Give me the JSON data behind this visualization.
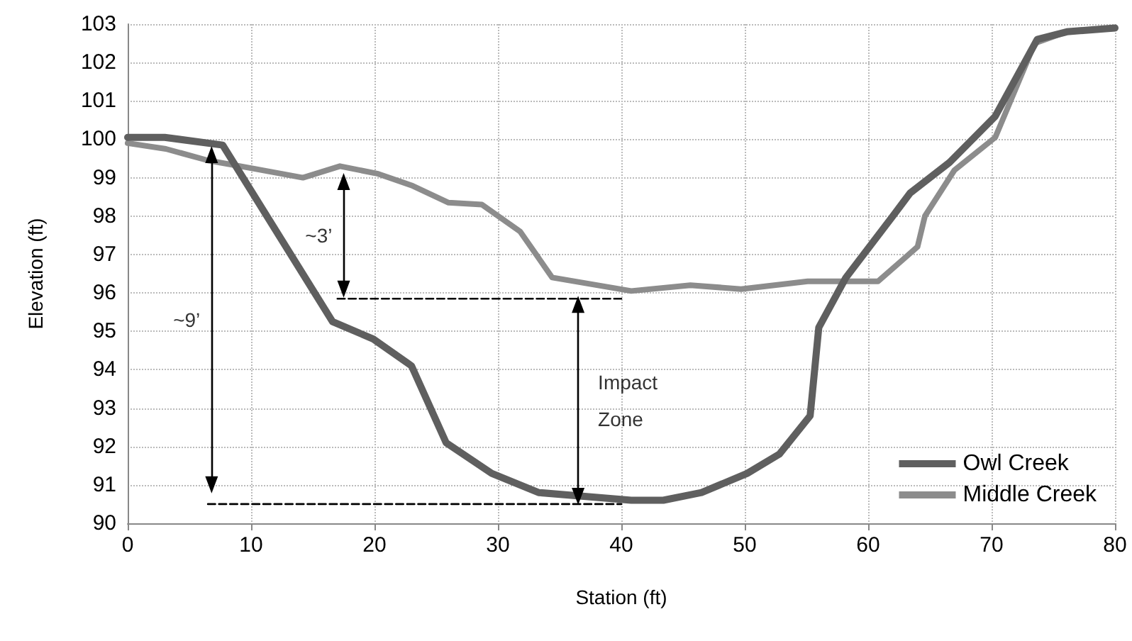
{
  "chart_data": {
    "type": "line",
    "xlabel": "Station (ft)",
    "ylabel": "Elevation (ft)",
    "xlim": [
      0,
      80
    ],
    "xticks": [
      0,
      10,
      20,
      30,
      40,
      50,
      60,
      70,
      80
    ],
    "ylim": [
      90,
      103
    ],
    "yticks": [
      90,
      91,
      92,
      93,
      94,
      95,
      96,
      97,
      98,
      99,
      100,
      101,
      102,
      103
    ],
    "grid": true,
    "legend": "bottom right",
    "line_style": "solid",
    "marker": "none",
    "series": [
      {
        "name": "Owl Creek",
        "color": "#5f5f5f",
        "x": [
          0,
          3,
          7.7,
          16.6,
          19.9,
          23,
          25.8,
          29.5,
          33.3,
          40.8,
          43.4,
          46.5,
          50.2,
          52.8,
          55.3,
          56,
          58.2,
          62,
          63.4,
          66.6,
          70.3,
          73.7,
          76.1,
          80
        ],
        "values": [
          100.05,
          100.05,
          99.85,
          95.25,
          94.8,
          94.1,
          92.1,
          91.3,
          90.8,
          90.6,
          90.6,
          90.8,
          91.3,
          91.8,
          92.8,
          95.1,
          96.4,
          98,
          98.6,
          99.4,
          100.6,
          102.6,
          102.8,
          102.9
        ]
      },
      {
        "name": "Middle Creek",
        "color": "#8c8c8c",
        "x": [
          0,
          3.1,
          6.5,
          10,
          14.2,
          17.2,
          20.3,
          23,
          26,
          28.7,
          31.8,
          34.4,
          40.8,
          45.6,
          49.7,
          55.1,
          60.8,
          64,
          64.6,
          67,
          70.3,
          73.5,
          76.1,
          80
        ],
        "values": [
          99.9,
          99.75,
          99.45,
          99.25,
          99,
          99.3,
          99.1,
          98.8,
          98.35,
          98.3,
          97.6,
          96.4,
          96.05,
          96.2,
          96.1,
          96.3,
          96.3,
          97.2,
          98,
          99.2,
          100.05,
          102.5,
          102.8,
          102.9
        ]
      },
      {
        "color": "#000000",
        "line_style": "dashed",
        "x": [
          17,
          40
        ],
        "values": [
          95.85,
          95.85
        ]
      },
      {
        "color": "#000000",
        "line_style": "dashed",
        "x": [
          6.5,
          40
        ],
        "values": [
          90.5,
          90.5
        ]
      },
      {
        "color": "#000000",
        "marker": "triangle",
        "x": [
          6.8,
          6.8
        ],
        "values": [
          99.6,
          91
        ]
      },
      {
        "color": "#000000",
        "marker": "triangle",
        "x": [
          17.5,
          17.5
        ],
        "values": [
          98.9,
          96.1
        ]
      },
      {
        "color": "#000000",
        "marker": "triangle",
        "x": [
          36.5,
          36.5
        ],
        "values": [
          95.7,
          90.7
        ]
      }
    ],
    "annotations": [
      "~9’",
      "~3’",
      "Impact\nZone"
    ]
  }
}
